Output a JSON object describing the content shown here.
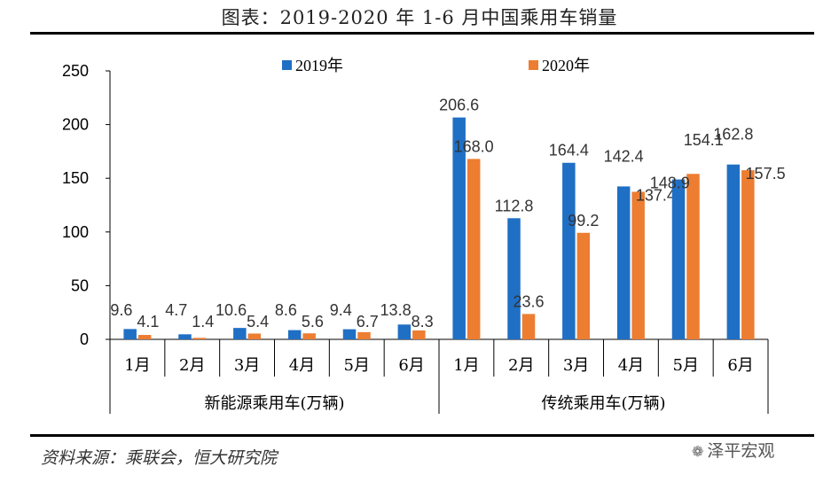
{
  "title": "图表：2019-2020 年 1-6 月中国乘用车销量",
  "source": "资料来源：乘联会，恒大研究院",
  "watermark": {
    "icon": "wechat-icon",
    "text": "泽平宏观"
  },
  "chart_data": {
    "type": "bar",
    "ylim": [
      0,
      250
    ],
    "yticks": [
      0,
      50,
      100,
      150,
      200,
      250
    ],
    "grid": false,
    "legend_position": "top",
    "groups": [
      {
        "label": "新能源乘用车(万辆)",
        "categories": [
          "1月",
          "2月",
          "3月",
          "4月",
          "5月",
          "6月"
        ]
      },
      {
        "label": "传统乘用车(万辆)",
        "categories": [
          "1月",
          "2月",
          "3月",
          "4月",
          "5月",
          "6月"
        ]
      }
    ],
    "series": [
      {
        "name": "2019年",
        "color": "#1F6FC5",
        "values": [
          9.6,
          4.7,
          10.6,
          8.6,
          9.4,
          13.8,
          206.6,
          112.8,
          164.4,
          142.4,
          148.9,
          162.8
        ],
        "labels": [
          "9.6",
          "4.7",
          "10.6",
          "8.6",
          "9.4",
          "13.8",
          "206.6",
          "112.8",
          "164.4",
          "142.4",
          "148.9",
          "162.8"
        ]
      },
      {
        "name": "2020年",
        "color": "#ED7D31",
        "values": [
          4.1,
          1.4,
          5.4,
          5.6,
          6.7,
          8.3,
          168.0,
          23.6,
          99.2,
          137.4,
          154.1,
          157.5
        ],
        "labels": [
          "4.1",
          "1.4",
          "5.4",
          "5.6",
          "6.7",
          "8.3",
          "168.0",
          "23.6",
          "99.2",
          "137.4",
          "154.1",
          "157.5"
        ]
      }
    ]
  }
}
